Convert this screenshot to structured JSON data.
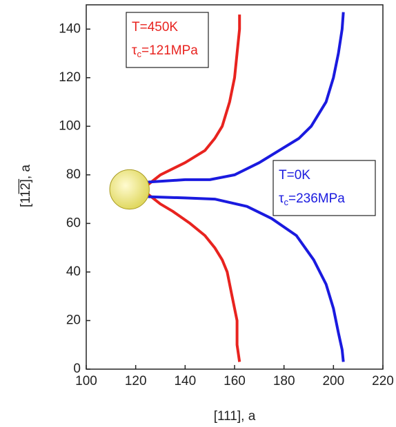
{
  "chart_data": {
    "type": "line",
    "xlabel": "[111], a",
    "ylabel": "[11̅2̅], a",
    "xlim": [
      100,
      220
    ],
    "xticks": [
      100,
      120,
      140,
      160,
      180,
      200,
      220
    ],
    "ylim": [
      0,
      150
    ],
    "yticks": [
      0,
      20,
      40,
      60,
      80,
      100,
      120,
      140
    ],
    "obstacle": {
      "x": 117.5,
      "y": 74,
      "radius": 8,
      "color": "#e0d860"
    },
    "series": [
      {
        "color": "#e8231f",
        "x": [
          125,
          130,
          140,
          148,
          152,
          155,
          158,
          160,
          161,
          162,
          162,
          null,
          125,
          130,
          135,
          142,
          148,
          152,
          155,
          157,
          159,
          161,
          161,
          162
        ],
        "values": [
          76,
          80,
          85,
          90,
          95,
          100,
          110,
          120,
          130,
          140,
          146,
          null,
          72,
          68,
          65,
          60,
          55,
          50,
          45,
          40,
          30,
          20,
          10,
          3
        ]
      },
      {
        "color": "#1a1adf",
        "x": [
          125,
          140,
          150,
          160,
          170,
          178,
          186,
          191,
          197,
          200,
          202,
          203.5,
          204,
          null,
          125,
          140,
          152,
          165,
          175,
          185,
          192,
          197,
          200,
          202,
          203.5,
          204
        ],
        "values": [
          77,
          78,
          78,
          80,
          85,
          90,
          95,
          100,
          110,
          120,
          130,
          140,
          147,
          null,
          71,
          70.5,
          70,
          67,
          62,
          55,
          45,
          35,
          25,
          15,
          8,
          3
        ]
      }
    ],
    "annotations": [
      {
        "color": "#e8231f",
        "text": "T=450K",
        "tau": "τ",
        "sub": "c",
        "rest": "=121MPa"
      },
      {
        "color": "#1a1adf",
        "text": "T=0K",
        "tau": "τ",
        "sub": "c",
        "rest": "=236MPa"
      }
    ]
  }
}
